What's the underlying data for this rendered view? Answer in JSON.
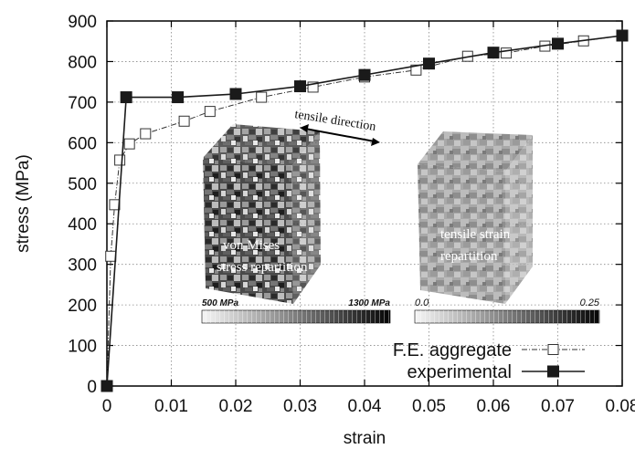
{
  "chart_data": {
    "type": "line",
    "xlabel": "strain",
    "ylabel": "stress (MPa)",
    "xlim": [
      0,
      0.08
    ],
    "ylim": [
      0,
      900
    ],
    "x_ticks": [
      0,
      0.01,
      0.02,
      0.03,
      0.04,
      0.05,
      0.06,
      0.07,
      0.08
    ],
    "x_tick_labels": [
      "0",
      "0.01",
      "0.02",
      "0.03",
      "0.04",
      "0.05",
      "0.06",
      "0.07",
      "0.08"
    ],
    "y_ticks": [
      0,
      100,
      200,
      300,
      400,
      500,
      600,
      700,
      800,
      900
    ],
    "y_tick_labels": [
      "0",
      "100",
      "200",
      "300",
      "400",
      "500",
      "600",
      "700",
      "800",
      "900"
    ],
    "grid": true,
    "legend_position": "bottom-right",
    "series": [
      {
        "name": "F.E. aggregate",
        "marker": "open-square",
        "line_style": "dash-dot",
        "x": [
          0,
          0.0006,
          0.0012,
          0.002,
          0.0035,
          0.006,
          0.012,
          0.016,
          0.024,
          0.032,
          0.04,
          0.048,
          0.056,
          0.062,
          0.068,
          0.074,
          0.08
        ],
        "y": [
          0,
          320,
          447,
          557,
          597,
          622,
          653,
          677,
          712,
          737,
          762,
          779,
          813,
          821,
          838,
          851,
          864
        ]
      },
      {
        "name": "experimental",
        "marker": "filled-square",
        "line_style": "solid",
        "x": [
          0,
          0.003,
          0.011,
          0.02,
          0.03,
          0.04,
          0.05,
          0.06,
          0.07,
          0.08
        ],
        "y": [
          0,
          712,
          712,
          720,
          739,
          767,
          795,
          822,
          844,
          864
        ]
      }
    ],
    "annotations": {
      "tensile_direction": "tensile direction",
      "cube1_line1": "von Mises",
      "cube1_line2": "stress repartition",
      "cube2_line1": "tensile strain",
      "cube2_line2": "repartition",
      "scale1_min": "500 MPa",
      "scale1_max": "1300 MPa",
      "scale2_min": "0.0",
      "scale2_max": "0.25"
    },
    "colors": {
      "axes": "#000000",
      "grid": "#888888",
      "experimental": "#1a1a1a",
      "fe_aggregate": "#333333"
    }
  }
}
